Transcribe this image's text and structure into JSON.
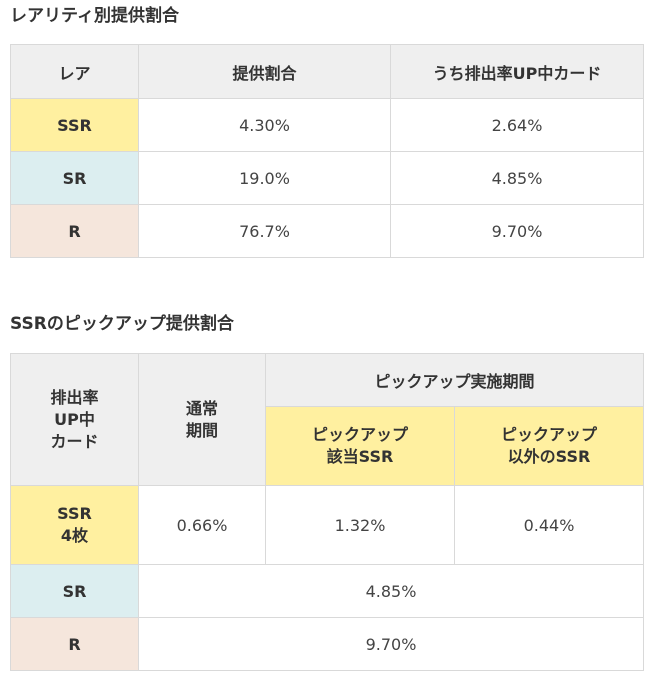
{
  "section1": {
    "title": "レアリティ別提供割合",
    "headers": [
      "レア",
      "提供割合",
      "うち排出率UP中カード"
    ],
    "rows": [
      {
        "rarity": "SSR",
        "rate": "4.30%",
        "up_rate": "2.64%"
      },
      {
        "rarity": "SR",
        "rate": "19.0%",
        "up_rate": "4.85%"
      },
      {
        "rarity": "R",
        "rate": "76.7%",
        "up_rate": "9.70%"
      }
    ]
  },
  "section2": {
    "title": "SSRのピックアップ提供割合",
    "header_col1": [
      "排出率",
      "UP中",
      "カード"
    ],
    "header_col2": [
      "通常",
      "期間"
    ],
    "header_pickup": "ピックアップ実施期間",
    "header_pickup_target": [
      "ピックアップ",
      "該当SSR"
    ],
    "header_pickup_other": [
      "ピックアップ",
      "以外のSSR"
    ],
    "ssr_row": {
      "label": [
        "SSR",
        "4枚"
      ],
      "normal": "0.66%",
      "pickup_target": "1.32%",
      "pickup_other": "0.44%"
    },
    "sr_row": {
      "label": "SR",
      "value": "4.85%"
    },
    "r_row": {
      "label": "R",
      "value": "9.70%"
    }
  }
}
